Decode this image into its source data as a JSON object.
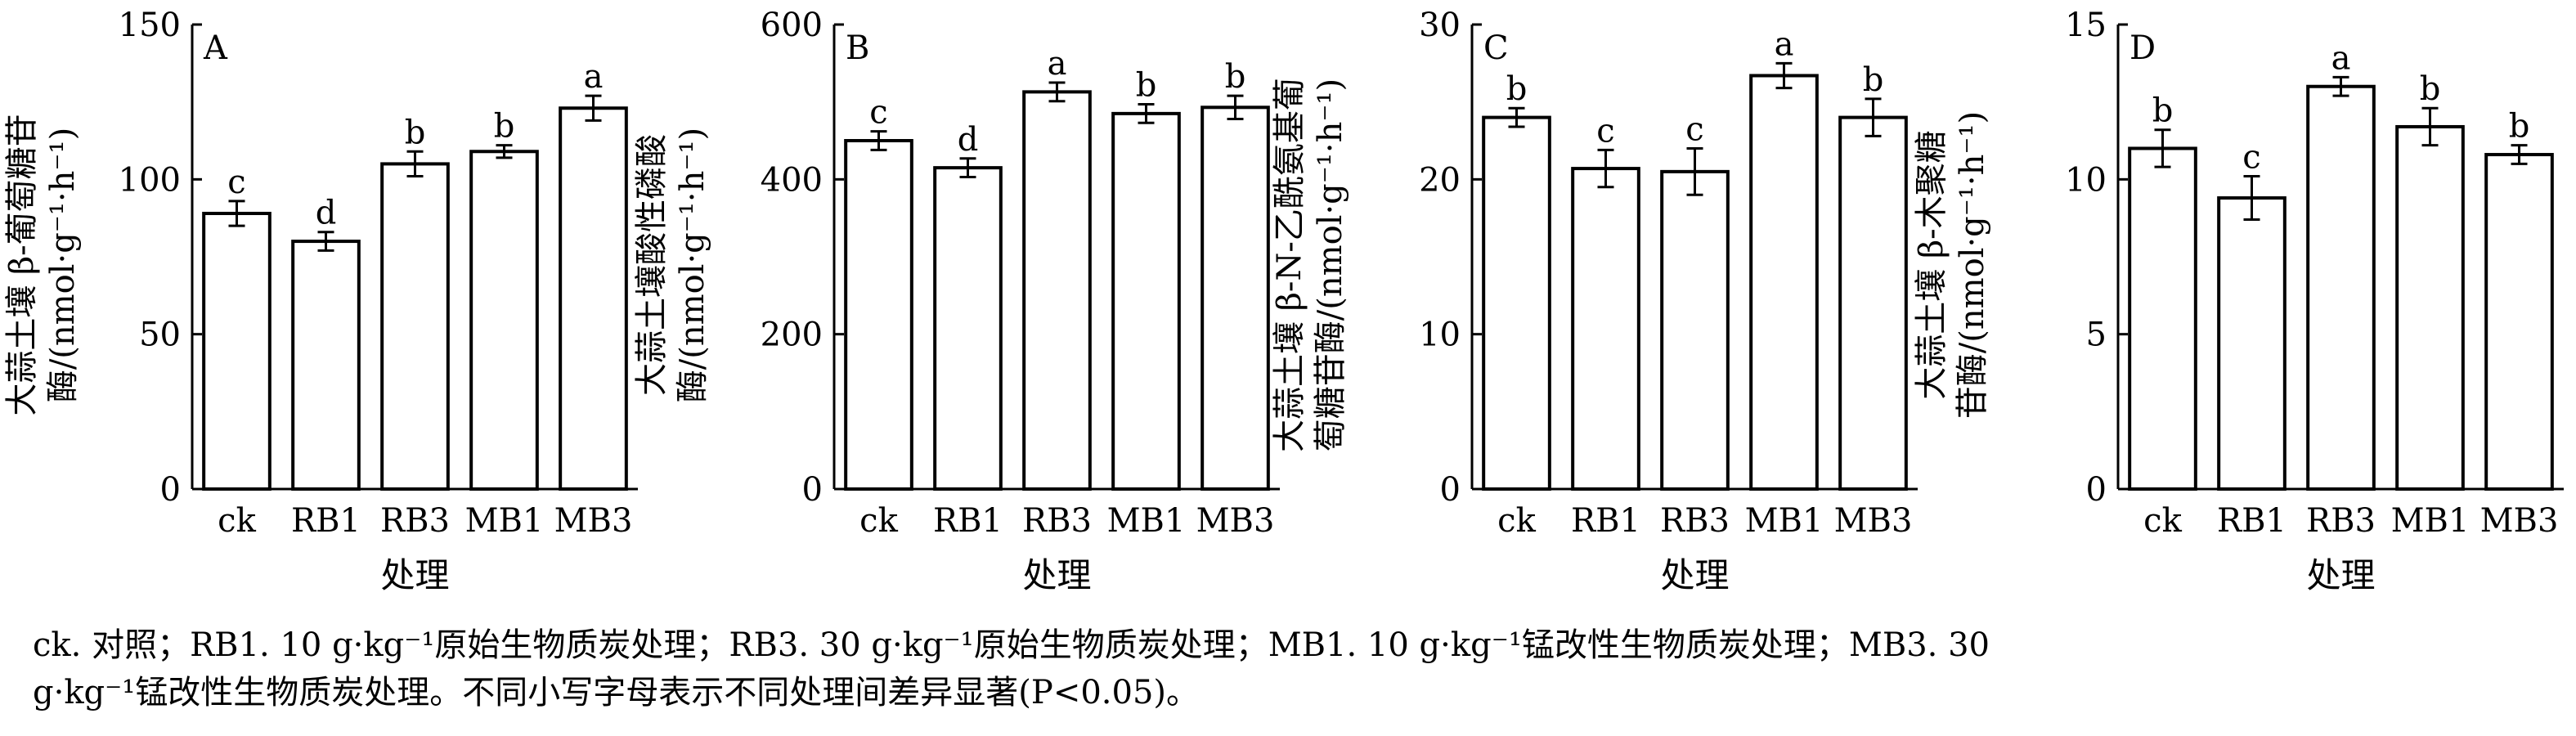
{
  "chart_data": [
    {
      "type": "bar",
      "panel_label": "A",
      "categories": [
        "ck",
        "RB1",
        "RB3",
        "MB1",
        "MB3"
      ],
      "values": [
        89,
        80,
        105,
        109,
        123
      ],
      "errors": [
        4,
        3,
        4,
        2,
        4
      ],
      "letters": [
        "c",
        "d",
        "b",
        "b",
        "a"
      ],
      "ylabel_lines": [
        "大蒜土壤 β-葡萄糖苷",
        "酶/(nmol·g⁻¹·h⁻¹)"
      ],
      "xlabel": "处理",
      "ylim": [
        0,
        150
      ],
      "yticks": [
        0,
        50,
        100,
        150
      ]
    },
    {
      "type": "bar",
      "panel_label": "B",
      "categories": [
        "ck",
        "RB1",
        "RB3",
        "MB1",
        "MB3"
      ],
      "values": [
        450,
        415,
        513,
        485,
        493
      ],
      "errors": [
        12,
        12,
        12,
        12,
        15
      ],
      "letters": [
        "c",
        "d",
        "a",
        "b",
        "b"
      ],
      "ylabel_lines": [
        "大蒜土壤酸性磷酸",
        "酶/(nmol·g⁻¹·h⁻¹)"
      ],
      "xlabel": "处理",
      "ylim": [
        0,
        600
      ],
      "yticks": [
        0,
        200,
        400,
        600
      ]
    },
    {
      "type": "bar",
      "panel_label": "C",
      "categories": [
        "ck",
        "RB1",
        "RB3",
        "MB1",
        "MB3"
      ],
      "values": [
        24,
        20.7,
        20.5,
        26.7,
        24
      ],
      "errors": [
        0.6,
        1.2,
        1.5,
        0.8,
        1.2
      ],
      "letters": [
        "b",
        "c",
        "c",
        "a",
        "b"
      ],
      "ylabel_lines": [
        "大蒜土壤 β-N-乙酰氨基葡",
        "萄糖苷酶/(nmol·g⁻¹·h⁻¹)"
      ],
      "xlabel": "处理",
      "ylim": [
        0,
        30
      ],
      "yticks": [
        0,
        10,
        20,
        30
      ]
    },
    {
      "type": "bar",
      "panel_label": "D",
      "categories": [
        "ck",
        "RB1",
        "RB3",
        "MB1",
        "MB3"
      ],
      "values": [
        11,
        9.4,
        13,
        11.7,
        10.8
      ],
      "errors": [
        0.6,
        0.7,
        0.3,
        0.6,
        0.3
      ],
      "letters": [
        "b",
        "c",
        "a",
        "b",
        "b"
      ],
      "ylabel_lines": [
        "大蒜土壤 β-木聚糖",
        "苷酶/(nmol·g⁻¹·h⁻¹)"
      ],
      "xlabel": "处理",
      "ylim": [
        0,
        15
      ],
      "yticks": [
        0,
        5,
        10,
        15
      ]
    }
  ],
  "caption": {
    "line1": "ck. 对照；RB1. 10 g·kg⁻¹原始生物质炭处理；RB3. 30 g·kg⁻¹原始生物质炭处理；MB1. 10 g·kg⁻¹锰改性生物质炭处理；MB3. 30",
    "line2": "g·kg⁻¹锰改性生物质炭处理。不同小写字母表示不同处理间差异显著(P<0.05)。"
  }
}
